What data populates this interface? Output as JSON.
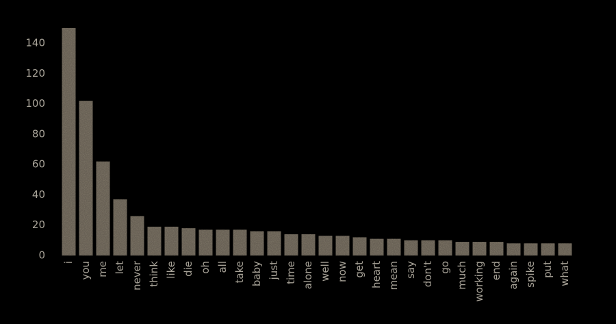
{
  "chart_data": {
    "type": "bar",
    "categories": [
      "i",
      "you",
      "me",
      "let",
      "never",
      "think",
      "like",
      "die",
      "oh",
      "all",
      "take",
      "baby",
      "just",
      "time",
      "alone",
      "well",
      "now",
      "get",
      "heart",
      "mean",
      "say",
      "don't",
      "go",
      "much",
      "working",
      "end",
      "again",
      "spike",
      "put",
      "what"
    ],
    "values": [
      150,
      102,
      62,
      37,
      26,
      19,
      19,
      18,
      17,
      17,
      17,
      16,
      16,
      14,
      14,
      13,
      13,
      12,
      11,
      11,
      10,
      10,
      10,
      9,
      9,
      9,
      8,
      8,
      8,
      8
    ],
    "color": "#8a8171",
    "ylim": [
      0,
      150
    ],
    "yticks": [
      0,
      20,
      40,
      60,
      80,
      100,
      120,
      140
    ],
    "grid": false
  }
}
